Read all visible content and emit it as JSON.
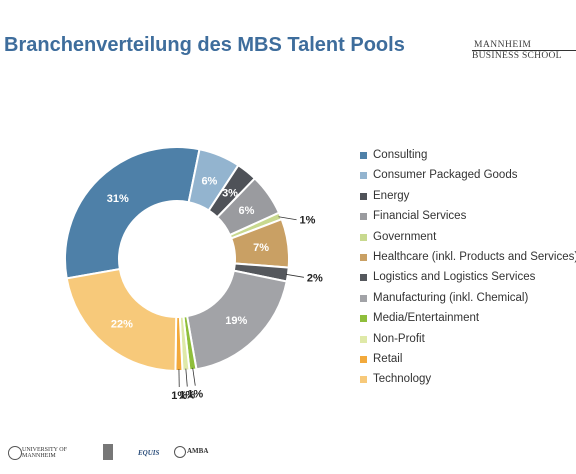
{
  "header": {
    "title": "Branchenverteilung des MBS Talent Pools",
    "logo_line1": "MANNHEIM",
    "logo_line2": "BUSINESS SCHOOL"
  },
  "colors": {
    "consulting": "#4e80a8",
    "consumer_packaged_goods": "#93b4cf",
    "energy": "#4f5258",
    "financial_services": "#9a9b9f",
    "government": "#c8d98f",
    "healthcare": "#c9a064",
    "logistics": "#55585d",
    "manufacturing": "#a2a3a7",
    "media": "#8fbe3b",
    "non_profit": "#dfe9a8",
    "retail": "#f2a93b",
    "technology": "#f7c97a"
  },
  "chart_data": {
    "type": "pie",
    "title": "Branchenverteilung des MBS Talent Pools",
    "donut": true,
    "legend_position": "right",
    "categories": [
      "Consulting",
      "Consumer Packaged Goods",
      "Energy",
      "Financial Services",
      "Government",
      "Healthcare (inkl. Products and Services)",
      "Logistics and Logistics Services",
      "Manufacturing (inkl. Chemical)",
      "Media/Entertainment",
      "Non-Profit",
      "Retail",
      "Technology"
    ],
    "values": [
      31,
      6,
      3,
      6,
      1,
      7,
      2,
      19,
      1,
      1,
      1,
      22
    ],
    "labels": [
      "31%",
      "6%",
      "3%",
      "6%",
      "1%",
      "7%",
      "2%",
      "19%",
      "1%",
      "1%",
      "1%",
      "22%"
    ],
    "series_colors": [
      "#4e80a8",
      "#93b4cf",
      "#4f5258",
      "#9a9b9f",
      "#c8d98f",
      "#c9a064",
      "#55585d",
      "#a2a3a7",
      "#8fbe3b",
      "#dfe9a8",
      "#f2a93b",
      "#f7c97a"
    ]
  },
  "footer": {
    "logo1": "UNIVERSITY OF MANNHEIM",
    "logo3": "EQUIS",
    "logo4": "AMBA"
  }
}
